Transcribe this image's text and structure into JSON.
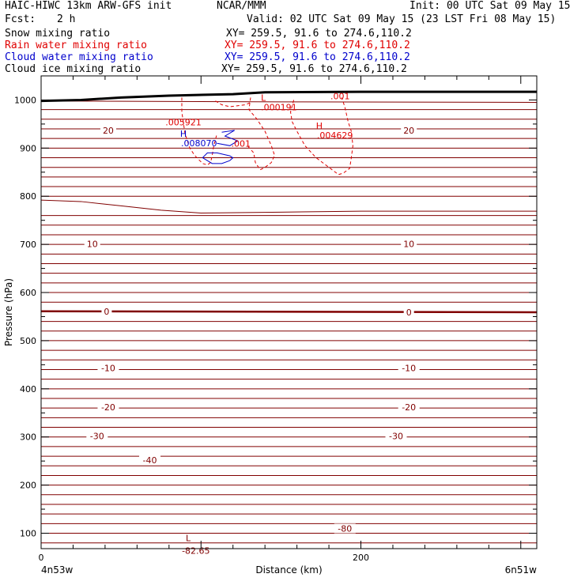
{
  "header": {
    "title_left": "HAIC-HIWC 13km ARW-GFS init",
    "org": "NCAR/MMM",
    "init": "Init: 00 UTC Sat 09 May 15",
    "fcst_label": "Fcst:",
    "fcst_value": "2 h",
    "valid": "Valid: 02 UTC Sat 09 May 15 (23 LST Fri 08 May 15)",
    "fields": [
      {
        "label": "Snow mixing ratio",
        "xy": "XY= 259.5, 91.6 to 274.6,110.2",
        "color": "#000000"
      },
      {
        "label": "Rain water mixing ratio",
        "xy": "XY= 259.5, 91.6 to 274.6,110.2",
        "color": "#e00000"
      },
      {
        "label": "Cloud water mixing ratio",
        "xy": "XY= 259.5, 91.6 to 274.6,110.2",
        "color": "#0000cc"
      },
      {
        "label": "Cloud ice mixing ratio",
        "xy": "XY= 259.5, 91.6 to 274.6,110.2",
        "color": "#000000"
      }
    ]
  },
  "chart_data": {
    "type": "cross-section",
    "xlabel": "Distance (km)",
    "ylabel": "Pressure (hPa)",
    "xlim": [
      0,
      310
    ],
    "ylim": [
      1050,
      68
    ],
    "xticks": [
      0,
      200
    ],
    "yticks": [
      100,
      200,
      300,
      400,
      500,
      600,
      700,
      800,
      900,
      1000
    ],
    "x_left_label": "4n53w",
    "x_right_label": "6n51w",
    "colors": {
      "temperature": "#800000",
      "rain": "#e00000",
      "cloud_water": "#0000cc",
      "ground": "#000000"
    },
    "temperature_contours": [
      {
        "label": "-80",
        "p": 110,
        "x": 190
      },
      {
        "label": "-40",
        "p": 252,
        "x": 68
      },
      {
        "label": "-30",
        "p": 302,
        "x": 35
      },
      {
        "label": "-30",
        "p": 302,
        "x": 222
      },
      {
        "label": "-20",
        "p": 362,
        "x": 42
      },
      {
        "label": "-20",
        "p": 362,
        "x": 230
      },
      {
        "label": "-10",
        "p": 443,
        "x": 42
      },
      {
        "label": "-10",
        "p": 443,
        "x": 230
      },
      {
        "label": "0",
        "p": 561,
        "x": 41
      },
      {
        "label": "0",
        "p": 559,
        "x": 230
      },
      {
        "label": "10",
        "p": 701,
        "x": 32
      },
      {
        "label": "10",
        "p": 701,
        "x": 230
      },
      {
        "label": "20",
        "p": 937,
        "x": 42
      },
      {
        "label": "20",
        "p": 937,
        "x": 230
      }
    ],
    "extrema": [
      {
        "kind": "L",
        "p": 80,
        "x": 92,
        "value": "-82.65",
        "series": "temperature"
      },
      {
        "kind": "H",
        "p": 920,
        "x": 89,
        "value": ".008070",
        "series": "cloud_water"
      },
      {
        "kind": "H",
        "p": 937,
        "x": 174,
        "value": ".004629",
        "series": "rain"
      },
      {
        "kind": "L",
        "p": 995,
        "x": 139,
        "value": ".000191",
        "series": "rain"
      }
    ],
    "annotations": [
      {
        "text": ".005921",
        "p": 954,
        "x": 89,
        "series": "rain"
      },
      {
        "text": ".001",
        "p": 910,
        "x": 125,
        "series": "rain"
      },
      {
        "text": ".001",
        "p": 1008,
        "x": 187,
        "series": "rain"
      }
    ]
  }
}
